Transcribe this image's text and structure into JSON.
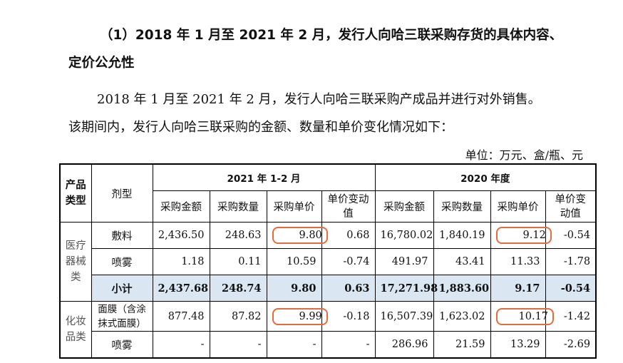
{
  "heading": {
    "line1": "（1）2018 年 1 月至 2021 年 2 月，发行人向哈三联采购存货的具体内容、",
    "line2": "定价公允性"
  },
  "paragraph": {
    "line1": "2018 年 1 月至 2021 年 2 月，发行人向哈三联采购产成品并进行对外销售。",
    "line2": "该期间内，发行人向哈三联采购的金额、数量和单价变化情况如下："
  },
  "unit": "单位：万元、盒/瓶、元",
  "table": {
    "col_category": "产品类型",
    "col_dosage": "剂型",
    "period_2021": "2021 年 1-2 月",
    "period_2020": "2020 年度",
    "sub_amount": "采购金额",
    "sub_qty": "采购数量",
    "sub_price": "采购单价",
    "sub_change": "单价变动值",
    "group_medical": "医疗器械类",
    "group_cosmetic": "化妆品类",
    "rows": [
      {
        "dosage": "敷料",
        "a21": "2,436.50",
        "q21": "248.63",
        "p21": "9.80",
        "c21": "0.68",
        "a20": "16,780.02",
        "q20": "1,840.19",
        "p20": "9.12",
        "c20": "-0.54"
      },
      {
        "dosage": "喷雾",
        "a21": "1.18",
        "q21": "0.11",
        "p21": "10.59",
        "c21": "-0.74",
        "a20": "491.97",
        "q20": "43.41",
        "p20": "11.33",
        "c20": "-1.78"
      },
      {
        "dosage": "小计",
        "a21": "2,437.68",
        "q21": "248.74",
        "p21": "9.80",
        "c21": "0.63",
        "a20": "17,271.98",
        "q20": "1,883.60",
        "p20": "9.17",
        "c20": "-0.54"
      },
      {
        "dosage": "面膜（含涂抹式面膜）",
        "a21": "877.48",
        "q21": "87.82",
        "p21": "9.99",
        "c21": "-0.18",
        "a20": "16,507.39",
        "q20": "1,623.02",
        "p20": "10.17",
        "c20": "-1.42"
      },
      {
        "dosage": "喷雾",
        "a21": "-",
        "q21": "-",
        "p21": "-",
        "c21": "-",
        "a20": "286.96",
        "q20": "21.59",
        "p20": "13.29",
        "c20": "-2.69"
      }
    ]
  },
  "colors": {
    "highlight": "#e36c3d",
    "subtotal_shade": "#dbe6f3"
  }
}
